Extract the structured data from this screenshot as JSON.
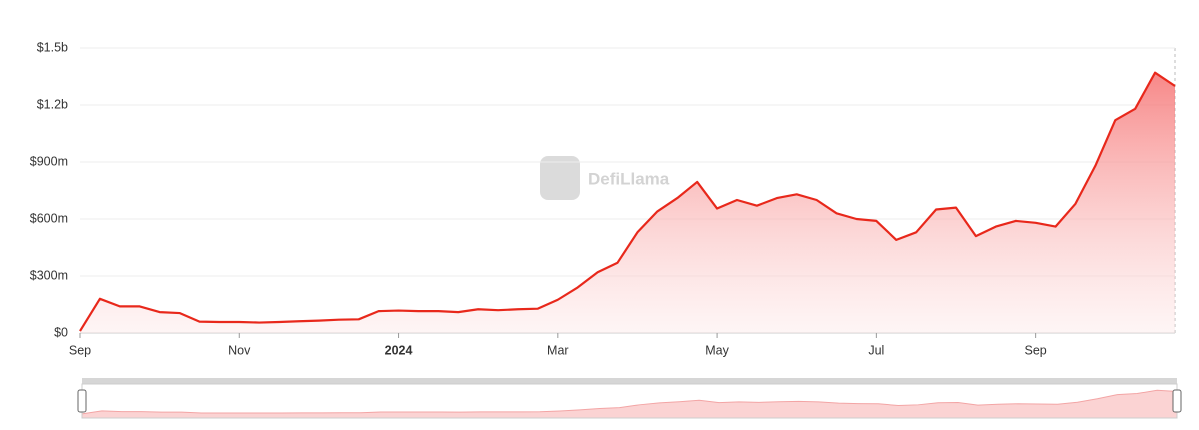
{
  "watermark": "DefiLlama",
  "chart_data": {
    "type": "area",
    "categories": [
      "Sep",
      null,
      null,
      null,
      null,
      null,
      null,
      null,
      "Nov",
      null,
      null,
      null,
      null,
      null,
      null,
      null,
      "2024",
      null,
      null,
      null,
      null,
      null,
      null,
      null,
      "Mar",
      null,
      null,
      null,
      null,
      null,
      null,
      null,
      "May",
      null,
      null,
      null,
      null,
      null,
      null,
      null,
      "Jul",
      null,
      null,
      null,
      null,
      null,
      null,
      null,
      "Sep",
      null,
      null,
      null,
      null,
      null,
      null,
      null
    ],
    "series": [
      {
        "color": "#e8281b",
        "values": [
          10,
          180,
          140,
          140,
          110,
          105,
          60,
          58,
          58,
          55,
          58,
          62,
          65,
          70,
          72,
          115,
          118,
          115,
          115,
          110,
          125,
          120,
          125,
          128,
          175,
          240,
          320,
          370,
          530,
          640,
          710,
          795,
          655,
          700,
          670,
          710,
          730,
          700,
          630,
          600,
          590,
          490,
          530,
          650,
          660,
          510,
          560,
          590,
          580,
          560,
          680,
          880,
          1120,
          1180,
          1370,
          1300
        ]
      }
    ],
    "ylim": [
      0,
      1500
    ],
    "yticks": [
      {
        "value": 0,
        "label": "$0"
      },
      {
        "value": 300,
        "label": "$300m"
      },
      {
        "value": 600,
        "label": "$600m"
      },
      {
        "value": 900,
        "label": "$900m"
      },
      {
        "value": 1200,
        "label": "$1.2b"
      },
      {
        "value": 1500,
        "label": "$1.5b"
      }
    ],
    "grid": true
  }
}
